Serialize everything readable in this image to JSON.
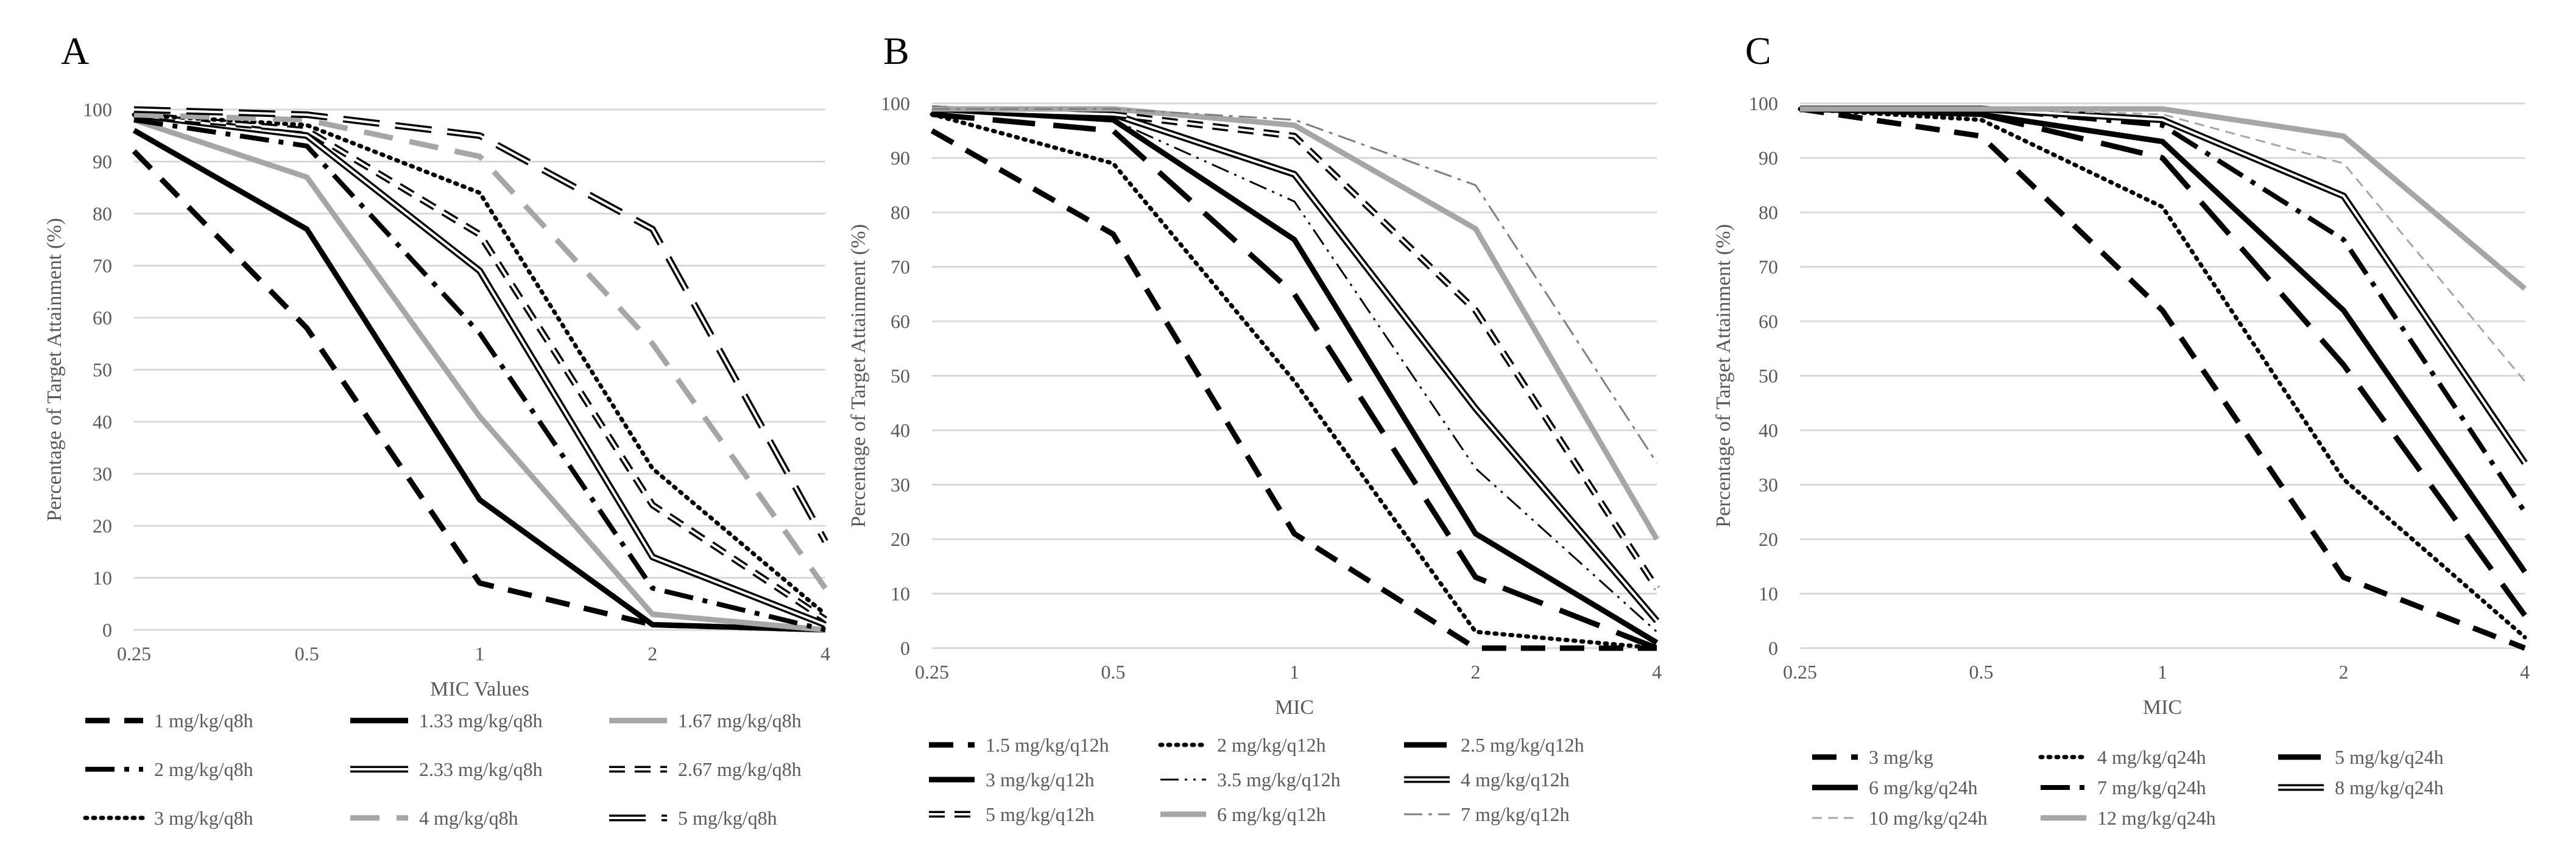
{
  "chart_data": [
    {
      "panel": "A",
      "type": "line",
      "x": [
        "0.25",
        "0.5",
        "1",
        "2",
        "4"
      ],
      "xlabel": "MIC Values",
      "ylabel": "Percentage of Target Attainment (%)",
      "ylim": [
        0,
        100
      ],
      "yticks": [
        "0",
        "10",
        "20",
        "30",
        "40",
        "50",
        "60",
        "70",
        "80",
        "90",
        "100"
      ],
      "grid": "horizontal",
      "legend": "bottom",
      "series": [
        {
          "name": "1 mg/kg/q8h",
          "values": [
            92,
            58,
            9,
            1,
            0
          ],
          "style": "dash-black-bold"
        },
        {
          "name": "1.33 mg/kg/q8h",
          "values": [
            96,
            77,
            25,
            1,
            0
          ],
          "style": "solid-black"
        },
        {
          "name": "1.67 mg/kg/q8h",
          "values": [
            98,
            87,
            41,
            3,
            0
          ],
          "style": "solid-gray"
        },
        {
          "name": "2 mg/kg/q8h",
          "values": [
            98,
            93,
            57,
            8,
            0
          ],
          "style": "dashdot-black"
        },
        {
          "name": "2.33 mg/kg/q8h",
          "values": [
            99,
            95,
            69,
            14,
            1
          ],
          "style": "double-line"
        },
        {
          "name": "2.67 mg/kg/q8h",
          "values": [
            99,
            96,
            76,
            24,
            2
          ],
          "style": "double-dash"
        },
        {
          "name": "3 mg/kg/q8h",
          "values": [
            99,
            97,
            84,
            31,
            3
          ],
          "style": "dot-black"
        },
        {
          "name": "4 mg/kg/q8h",
          "values": [
            99,
            98,
            91,
            55,
            8
          ],
          "style": "dash-gray"
        },
        {
          "name": "5 mg/kg/q8h",
          "values": [
            100,
            99,
            95,
            77,
            17
          ],
          "style": "double-dash-long"
        }
      ]
    },
    {
      "panel": "B",
      "type": "line",
      "x": [
        "0.25",
        "0.5",
        "1",
        "2",
        "4"
      ],
      "xlabel": "MIC",
      "ylabel": "Percentage of Target Attainment (%)",
      "ylim": [
        0,
        100
      ],
      "yticks": [
        "0",
        "10",
        "20",
        "30",
        "40",
        "50",
        "60",
        "70",
        "80",
        "90",
        "100"
      ],
      "grid": "horizontal",
      "legend": "bottom",
      "series": [
        {
          "name": "1.5 mg/kg/q12h",
          "values": [
            95,
            76,
            21,
            0,
            0
          ],
          "style": "dash-black-bold"
        },
        {
          "name": "2 mg/kg/q12h",
          "values": [
            98,
            89,
            49,
            3,
            0
          ],
          "style": "dot-black"
        },
        {
          "name": "2.5 mg/kg/q12h",
          "values": [
            98,
            95,
            65,
            13,
            0
          ],
          "style": "dash-black-long"
        },
        {
          "name": "3 mg/kg/q12h",
          "values": [
            99,
            97,
            75,
            21,
            1
          ],
          "style": "solid-black"
        },
        {
          "name": "3.5 mg/kg/q12h",
          "values": [
            99,
            97,
            82,
            33,
            3
          ],
          "style": "dashdotdot-black"
        },
        {
          "name": "4 mg/kg/q12h",
          "values": [
            99,
            98,
            87,
            44,
            5
          ],
          "style": "double-line"
        },
        {
          "name": "5 mg/kg/q12h",
          "values": [
            99,
            98,
            94,
            62,
            11
          ],
          "style": "double-dash"
        },
        {
          "name": "6 mg/kg/q12h",
          "values": [
            99,
            99,
            96,
            77,
            20
          ],
          "style": "solid-gray"
        },
        {
          "name": "7 mg/kg/q12h",
          "values": [
            99,
            99,
            97,
            85,
            34
          ],
          "style": "dashdot-gray"
        }
      ]
    },
    {
      "panel": "C",
      "type": "line",
      "x": [
        "0.25",
        "0.5",
        "1",
        "2",
        "4"
      ],
      "xlabel": "MIC",
      "ylabel": "Percentage of Target Attainment (%)",
      "ylim": [
        0,
        100
      ],
      "yticks": [
        "0",
        "10",
        "20",
        "30",
        "40",
        "50",
        "60",
        "70",
        "80",
        "90",
        "100"
      ],
      "grid": "horizontal",
      "legend": "bottom",
      "series": [
        {
          "name": "3 mg/kg",
          "values": [
            99,
            94,
            62,
            13,
            0
          ],
          "style": "dash-black-bold"
        },
        {
          "name": "4 mg/kg/q24h",
          "values": [
            99,
            97,
            81,
            31,
            2
          ],
          "style": "dot-black"
        },
        {
          "name": "5 mg/kg/q24h",
          "values": [
            99,
            98,
            90,
            52,
            6
          ],
          "style": "dash-black-long"
        },
        {
          "name": "6 mg/kg/q24h",
          "values": [
            99,
            98,
            93,
            62,
            14
          ],
          "style": "solid-black"
        },
        {
          "name": "7 mg/kg/q24h",
          "values": [
            99,
            99,
            96,
            75,
            25
          ],
          "style": "dashdot-black"
        },
        {
          "name": "8 mg/kg/q24h",
          "values": [
            99,
            99,
            97,
            83,
            34
          ],
          "style": "double-line"
        },
        {
          "name": "10 mg/kg/q24h",
          "values": [
            99,
            99,
            98,
            89,
            49
          ],
          "style": "dash-gray-thin"
        },
        {
          "name": "12 mg/kg/q24h",
          "values": [
            99,
            99,
            99,
            94,
            66
          ],
          "style": "solid-gray"
        }
      ]
    }
  ]
}
